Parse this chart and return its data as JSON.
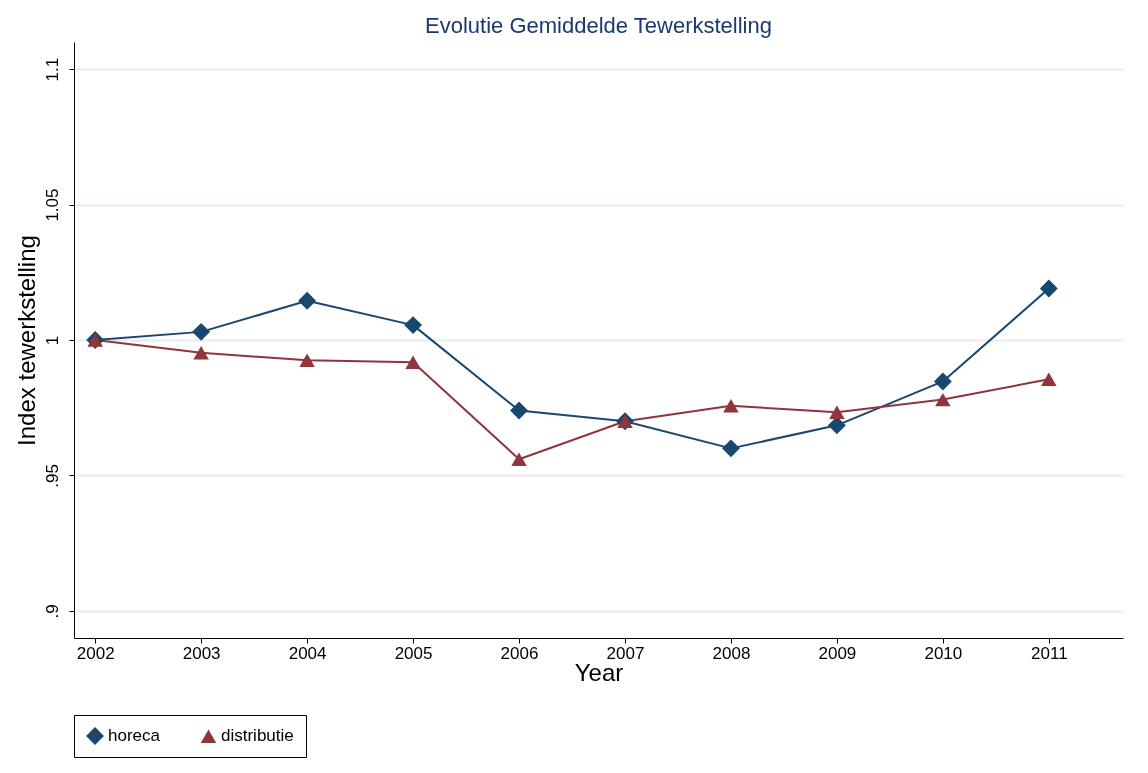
{
  "chart_data": {
    "type": "line",
    "title": "Evolutie Gemiddelde Tewerkstelling",
    "xlabel": "Year",
    "ylabel": "Index tewerkstelling",
    "x": [
      2002,
      2003,
      2004,
      2005,
      2006,
      2007,
      2008,
      2009,
      2010,
      2011
    ],
    "series": [
      {
        "name": "horeca",
        "color": "#1a476f",
        "marker": "diamond",
        "values": [
          1.0,
          1.003,
          1.0145,
          1.0055,
          0.974,
          0.97,
          0.96,
          0.9685,
          0.9847,
          1.019
        ]
      },
      {
        "name": "distributie",
        "color": "#90353b",
        "marker": "triangle",
        "values": [
          1.0,
          0.9953,
          0.9925,
          0.9918,
          0.956,
          0.97,
          0.9757,
          0.9733,
          0.978,
          0.9855
        ]
      }
    ],
    "xlim": [
      2001.8,
      2011.7
    ],
    "xticks": [
      2002,
      2003,
      2004,
      2005,
      2006,
      2007,
      2008,
      2009,
      2010,
      2011
    ],
    "ylim": [
      0.89,
      1.11
    ],
    "yticks": [
      {
        "value": 0.9,
        "label": ".9"
      },
      {
        "value": 0.95,
        "label": ".95"
      },
      1,
      1.05,
      1.1
    ],
    "grid": "y",
    "legend": "bottom",
    "line_style": "solid"
  }
}
